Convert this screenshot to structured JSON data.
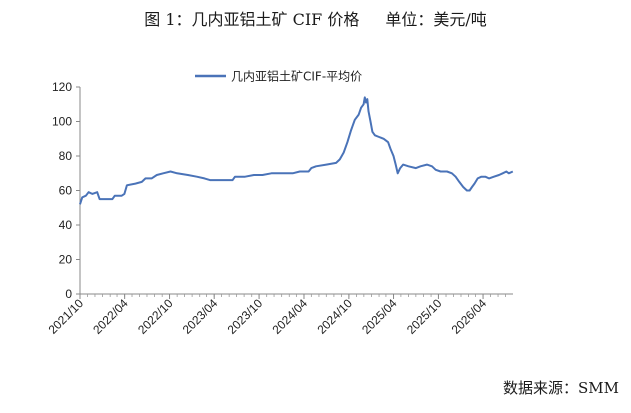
{
  "figure": {
    "title": "图 1：几内亚铝土矿 CIF 价格",
    "unit": "单位：美元/吨",
    "source": "数据来源：SMM"
  },
  "chart_data": {
    "type": "line",
    "title": "图 1：几内亚铝土矿 CIF 价格",
    "xlabel": "",
    "ylabel": "",
    "ylim": [
      0,
      120
    ],
    "yticks": [
      0,
      20,
      40,
      60,
      80,
      100,
      120
    ],
    "xticks": [
      "2021/10",
      "2022/04",
      "2022/10",
      "2023/04",
      "2023/10",
      "2024/04",
      "2024/10",
      "2025/04",
      "2025/10",
      "2026/04"
    ],
    "grid": false,
    "legend_position": "top-center",
    "series": [
      {
        "name": "几内亚铝土矿CIF-平均价",
        "color": "#4a73b8",
        "points": [
          [
            "2021-10-01",
            52
          ],
          [
            "2021-10-10",
            56
          ],
          [
            "2021-10-25",
            57
          ],
          [
            "2021-11-05",
            59
          ],
          [
            "2021-11-20",
            58
          ],
          [
            "2021-12-10",
            59
          ],
          [
            "2021-12-20",
            55
          ],
          [
            "2022-01-15",
            55
          ],
          [
            "2022-02-10",
            55
          ],
          [
            "2022-02-20",
            57
          ],
          [
            "2022-03-20",
            57
          ],
          [
            "2022-03-31",
            58
          ],
          [
            "2022-04-10",
            63
          ],
          [
            "2022-05-15",
            64
          ],
          [
            "2022-06-10",
            65
          ],
          [
            "2022-06-25",
            67
          ],
          [
            "2022-07-20",
            67
          ],
          [
            "2022-08-10",
            69
          ],
          [
            "2022-09-05",
            70
          ],
          [
            "2022-10-05",
            71
          ],
          [
            "2022-11-01",
            70
          ],
          [
            "2022-12-15",
            69
          ],
          [
            "2023-01-20",
            68
          ],
          [
            "2023-02-20",
            67
          ],
          [
            "2023-03-15",
            66
          ],
          [
            "2023-04-15",
            66
          ],
          [
            "2023-05-20",
            66
          ],
          [
            "2023-06-15",
            66
          ],
          [
            "2023-06-25",
            68
          ],
          [
            "2023-08-05",
            68
          ],
          [
            "2023-09-10",
            69
          ],
          [
            "2023-10-15",
            69
          ],
          [
            "2023-11-20",
            70
          ],
          [
            "2024-01-05",
            70
          ],
          [
            "2024-02-15",
            70
          ],
          [
            "2024-03-15",
            71
          ],
          [
            "2024-04-20",
            71
          ],
          [
            "2024-05-01",
            73
          ],
          [
            "2024-05-20",
            74
          ],
          [
            "2024-07-01",
            75
          ],
          [
            "2024-08-10",
            76
          ],
          [
            "2024-08-25",
            78
          ],
          [
            "2024-09-10",
            82
          ],
          [
            "2024-09-25",
            88
          ],
          [
            "2024-10-10",
            95
          ],
          [
            "2024-10-25",
            101
          ],
          [
            "2024-11-10",
            104
          ],
          [
            "2024-11-20",
            108
          ],
          [
            "2024-11-30",
            110
          ],
          [
            "2024-12-05",
            114
          ],
          [
            "2024-12-10",
            111
          ],
          [
            "2024-12-15",
            113
          ],
          [
            "2024-12-20",
            106
          ],
          [
            "2024-12-28",
            100
          ],
          [
            "2025-01-05",
            94
          ],
          [
            "2025-01-15",
            92
          ],
          [
            "2025-02-01",
            91
          ],
          [
            "2025-02-20",
            90
          ],
          [
            "2025-03-10",
            88
          ],
          [
            "2025-03-20",
            84
          ],
          [
            "2025-04-01",
            80
          ],
          [
            "2025-04-10",
            75
          ],
          [
            "2025-04-18",
            70
          ],
          [
            "2025-04-28",
            73
          ],
          [
            "2025-05-10",
            75
          ],
          [
            "2025-06-01",
            74
          ],
          [
            "2025-07-01",
            73
          ],
          [
            "2025-07-20",
            74
          ],
          [
            "2025-08-15",
            75
          ],
          [
            "2025-09-05",
            74
          ],
          [
            "2025-09-20",
            72
          ],
          [
            "2025-10-10",
            71
          ],
          [
            "2025-11-05",
            71
          ],
          [
            "2025-11-25",
            70
          ],
          [
            "2025-12-10",
            68
          ],
          [
            "2025-12-25",
            65
          ],
          [
            "2026-01-10",
            62
          ],
          [
            "2026-01-25",
            60
          ],
          [
            "2026-02-05",
            60
          ],
          [
            "2026-02-15",
            62
          ],
          [
            "2026-02-25",
            64
          ],
          [
            "2026-03-10",
            67
          ],
          [
            "2026-03-25",
            68
          ],
          [
            "2026-04-10",
            68
          ],
          [
            "2026-04-25",
            67
          ],
          [
            "2026-05-15",
            68
          ],
          [
            "2026-06-05",
            69
          ],
          [
            "2026-06-20",
            70
          ],
          [
            "2026-07-05",
            71
          ],
          [
            "2026-07-15",
            70
          ],
          [
            "2026-07-31",
            71
          ]
        ]
      }
    ]
  }
}
